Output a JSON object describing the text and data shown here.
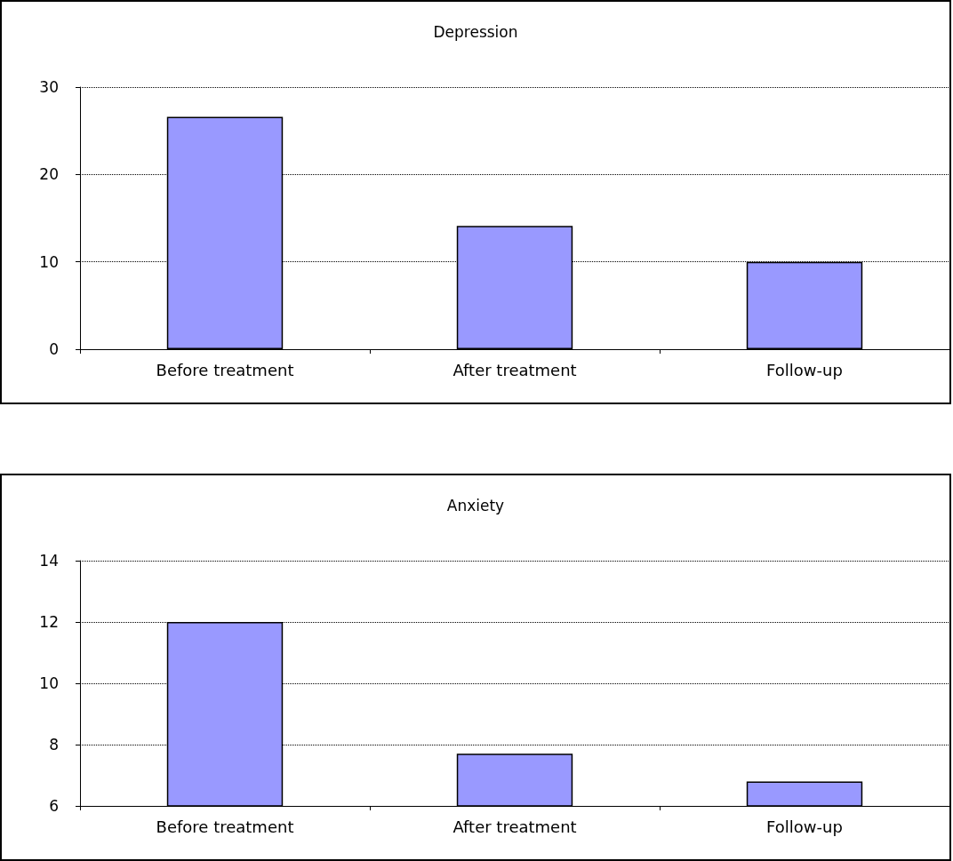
{
  "chart_data": [
    {
      "type": "bar",
      "title": "Depression",
      "categories": [
        "Before treatment",
        "After treatment",
        "Follow-up"
      ],
      "values": [
        26.6,
        14.1,
        10
      ],
      "color": "#9999ff",
      "ylim": [
        0,
        30
      ],
      "yticks": [
        0,
        10,
        20,
        30
      ],
      "grid": "y"
    },
    {
      "type": "bar",
      "title": "Anxiety",
      "categories": [
        "Before treatment",
        "After treatment",
        "Follow-up"
      ],
      "values": [
        12,
        7.7,
        6.8
      ],
      "color": "#9999ff",
      "ylim": [
        6,
        14
      ],
      "yticks": [
        6,
        8,
        10,
        12,
        14
      ],
      "grid": "y"
    }
  ]
}
